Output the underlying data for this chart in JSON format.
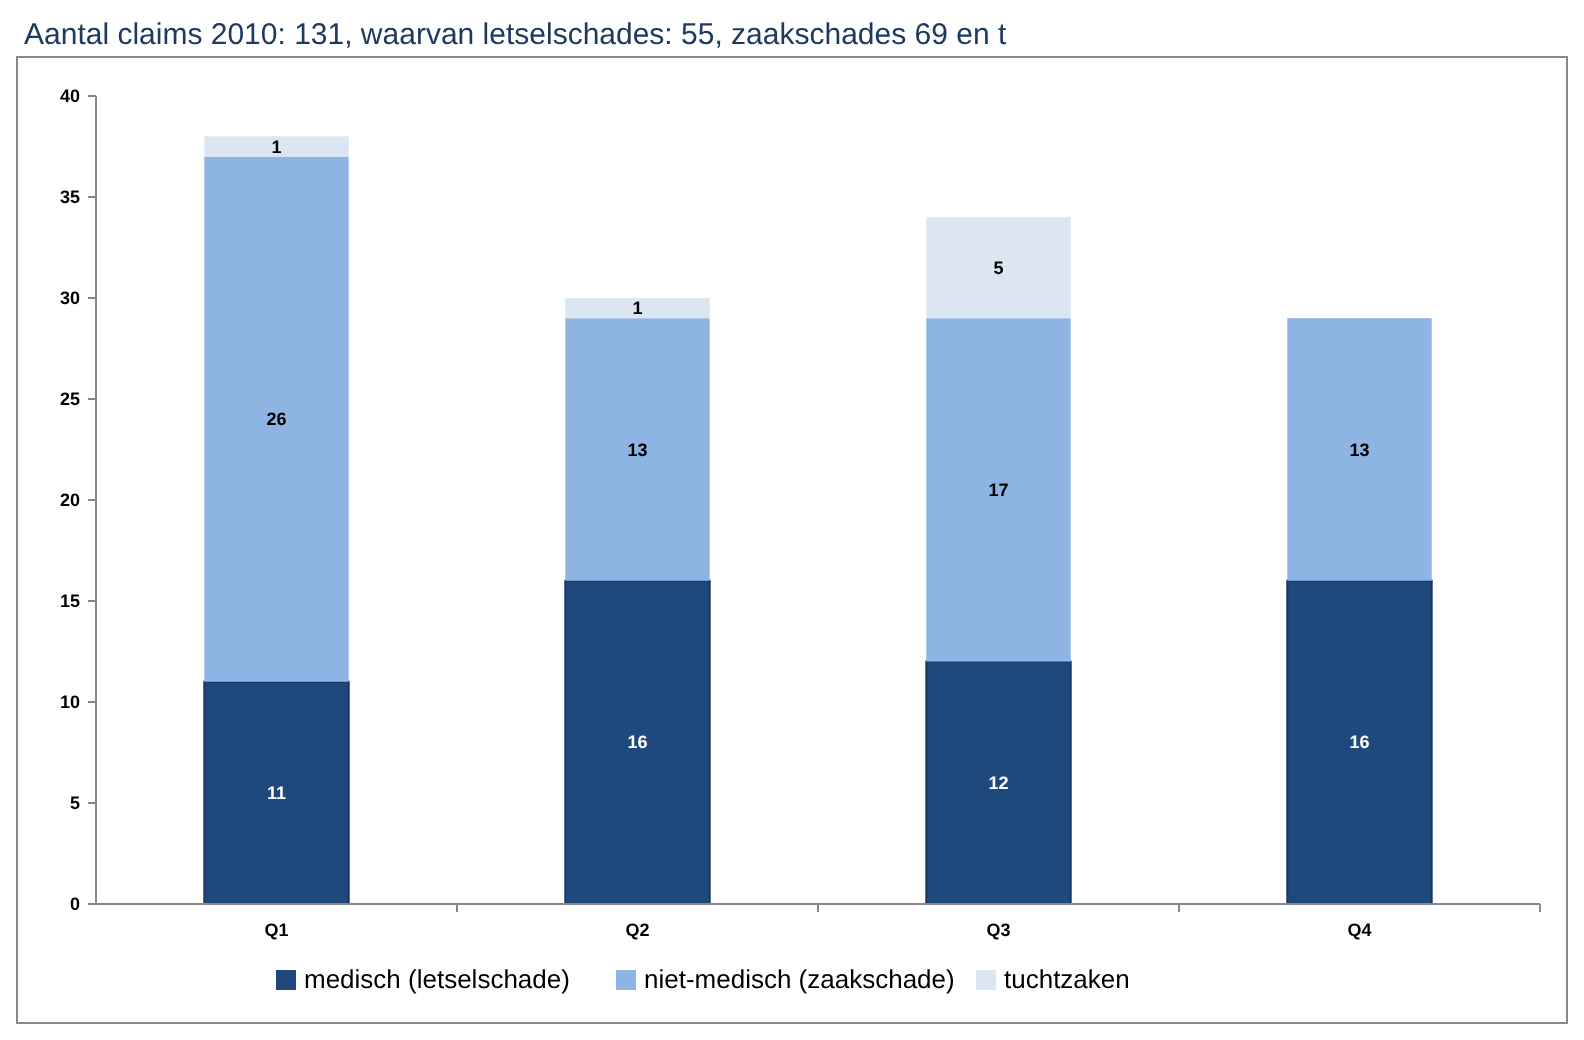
{
  "chart_data": {
    "type": "bar",
    "title": "Aantal claims 2010: 131, waarvan letselschades: 55, zaakschades 69 en t",
    "categories": [
      "Q1",
      "Q2",
      "Q3",
      "Q4"
    ],
    "stacked": true,
    "ylim": [
      0,
      40
    ],
    "yticks": [
      0,
      5,
      10,
      15,
      20,
      25,
      30,
      35,
      40
    ],
    "grid": false,
    "legend": "bottom",
    "data_labels": true,
    "series": [
      {
        "name": "medisch (letselschade)",
        "color": "#1f497d",
        "values": [
          11,
          16,
          12,
          16
        ]
      },
      {
        "name": "niet-medisch (zaakschade)",
        "color": "#8eb4e3",
        "values": [
          26,
          13,
          17,
          13
        ]
      },
      {
        "name": "tuchtzaken",
        "color": "#dce6f2",
        "values": [
          1,
          1,
          5,
          null
        ]
      }
    ]
  }
}
